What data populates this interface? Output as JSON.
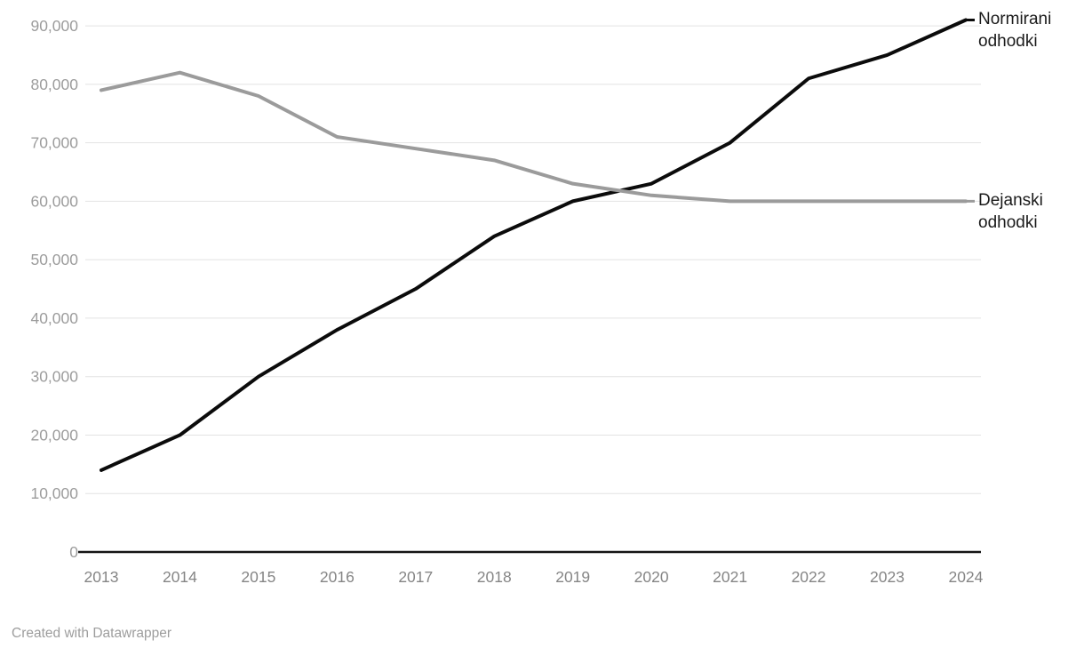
{
  "chart_data": {
    "type": "line",
    "x": [
      "2013",
      "2014",
      "2015",
      "2016",
      "2017",
      "2018",
      "2019",
      "2020",
      "2021",
      "2022",
      "2023",
      "2024"
    ],
    "series": [
      {
        "name": "Normirani odhodki",
        "color": "#0b0b0b",
        "values": [
          14000,
          20000,
          30000,
          38000,
          45000,
          54000,
          60000,
          63000,
          70000,
          81000,
          85000,
          91000
        ]
      },
      {
        "name": "Dejanski odhodki",
        "color": "#9b9b9b",
        "values": [
          79000,
          82000,
          78000,
          71000,
          69000,
          67000,
          63000,
          61000,
          60000,
          60000,
          60000,
          60000
        ]
      }
    ],
    "title": "",
    "xlabel": "",
    "ylabel": "",
    "ylim": [
      0,
      90000
    ],
    "yticks": [
      0,
      10000,
      20000,
      30000,
      40000,
      50000,
      60000,
      70000,
      80000,
      90000
    ],
    "ytick_labels": [
      "0",
      "10,000",
      "20,000",
      "30,000",
      "40,000",
      "50,000",
      "60,000",
      "70,000",
      "80,000",
      "90,000"
    ],
    "grid": true,
    "legend_position": "direct-labels-right"
  },
  "colors": {
    "gridline": "#e2e2e2",
    "zero_axis": "#141414",
    "y_tick_text": "#9c9c9c",
    "x_tick_text": "#858585",
    "series_label_text": "#1b1b1b",
    "credit_text": "#9d9d9d"
  },
  "footer": {
    "credit": "Created with Datawrapper"
  }
}
